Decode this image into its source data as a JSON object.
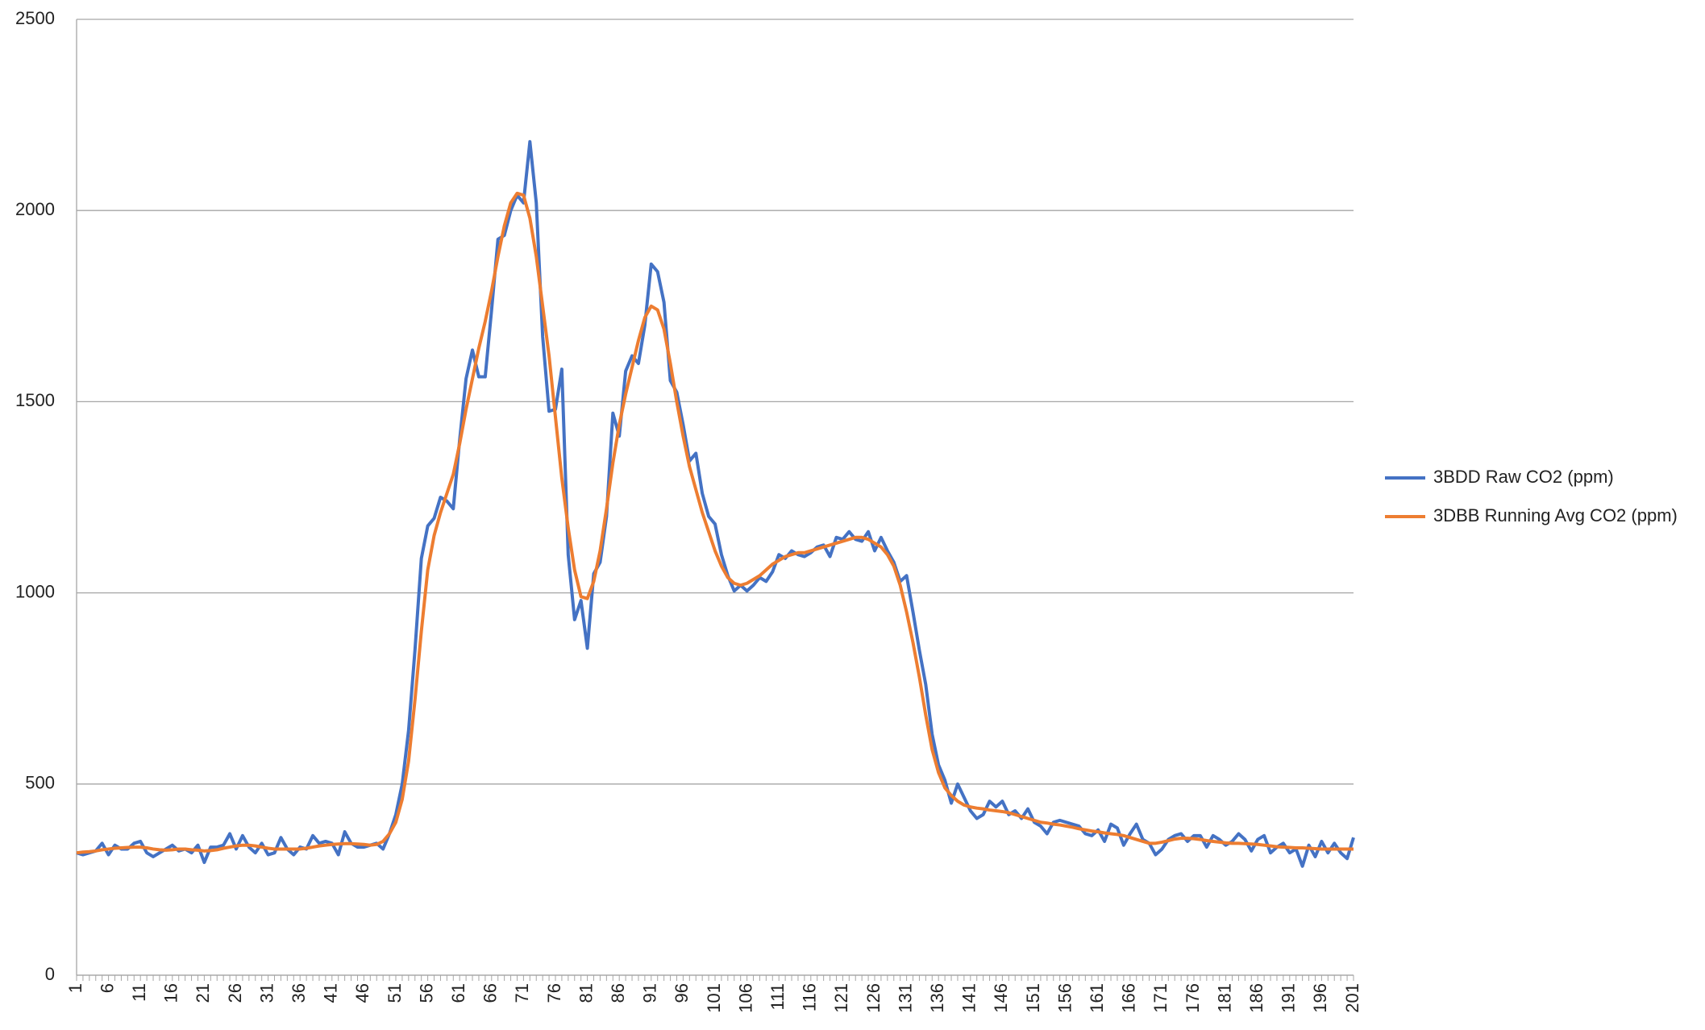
{
  "chart_data": {
    "type": "line",
    "categories": [
      1,
      null,
      null,
      null,
      null,
      6,
      null,
      null,
      null,
      null,
      11,
      null,
      null,
      null,
      null,
      16,
      null,
      null,
      null,
      null,
      21,
      null,
      null,
      null,
      null,
      26,
      null,
      null,
      null,
      null,
      31,
      null,
      null,
      null,
      null,
      36,
      null,
      null,
      null,
      null,
      41,
      null,
      null,
      null,
      null,
      46,
      null,
      null,
      null,
      null,
      51,
      null,
      null,
      null,
      null,
      56,
      null,
      null,
      null,
      null,
      61,
      null,
      null,
      null,
      null,
      66,
      null,
      null,
      null,
      null,
      71,
      null,
      null,
      null,
      null,
      76,
      null,
      null,
      null,
      null,
      81,
      null,
      null,
      null,
      null,
      86,
      null,
      null,
      null,
      null,
      91,
      null,
      null,
      null,
      null,
      96,
      null,
      null,
      null,
      null,
      101,
      null,
      null,
      null,
      null,
      106,
      null,
      null,
      null,
      null,
      111,
      null,
      null,
      null,
      null,
      116,
      null,
      null,
      null,
      null,
      121,
      null,
      null,
      null,
      null,
      126,
      null,
      null,
      null,
      null,
      131,
      null,
      null,
      null,
      null,
      136,
      null,
      null,
      null,
      null,
      141,
      null,
      null,
      null,
      null,
      146,
      null,
      null,
      null,
      null,
      151,
      null,
      null,
      null,
      null,
      156,
      null,
      null,
      null,
      null,
      161,
      null,
      null,
      null,
      null,
      166,
      null,
      null,
      null,
      null,
      171,
      null,
      null,
      null,
      null,
      176,
      null,
      null,
      null,
      null,
      181,
      null,
      null,
      null,
      null,
      186,
      null,
      null,
      null,
      null,
      191,
      null,
      null,
      null,
      null,
      196,
      null,
      null,
      null,
      null,
      201
    ],
    "series": [
      {
        "name": "3BDD Raw CO2 (ppm)",
        "color": "#4472c4",
        "values": [
          320,
          315,
          320,
          325,
          345,
          315,
          340,
          330,
          330,
          345,
          350,
          320,
          310,
          320,
          330,
          340,
          325,
          330,
          320,
          340,
          295,
          335,
          335,
          340,
          370,
          330,
          365,
          335,
          320,
          345,
          315,
          320,
          360,
          330,
          315,
          335,
          330,
          365,
          345,
          350,
          345,
          315,
          375,
          345,
          335,
          335,
          340,
          345,
          330,
          370,
          420,
          500,
          640,
          850,
          1090,
          1175,
          1195,
          1250,
          1240,
          1220,
          1400,
          1560,
          1635,
          1565,
          1565,
          1740,
          1925,
          1935,
          2000,
          2040,
          2020,
          2180,
          2020,
          1670,
          1475,
          1480,
          1585,
          1100,
          930,
          980,
          855,
          1050,
          1080,
          1200,
          1470,
          1410,
          1580,
          1620,
          1600,
          1700,
          1860,
          1840,
          1760,
          1555,
          1525,
          1440,
          1345,
          1365,
          1260,
          1200,
          1180,
          1100,
          1045,
          1005,
          1020,
          1005,
          1020,
          1040,
          1030,
          1055,
          1100,
          1090,
          1110,
          1100,
          1095,
          1105,
          1120,
          1125,
          1095,
          1145,
          1140,
          1160,
          1140,
          1135,
          1160,
          1110,
          1145,
          1110,
          1080,
          1030,
          1045,
          950,
          850,
          760,
          630,
          550,
          510,
          450,
          500,
          465,
          430,
          410,
          420,
          455,
          440,
          455,
          420,
          430,
          410,
          435,
          400,
          390,
          370,
          400,
          405,
          400,
          395,
          390,
          370,
          365,
          380,
          350,
          395,
          385,
          340,
          370,
          395,
          355,
          345,
          315,
          330,
          355,
          365,
          370,
          350,
          365,
          365,
          335,
          365,
          355,
          340,
          350,
          370,
          355,
          325,
          355,
          365,
          320,
          335,
          345,
          320,
          330,
          285,
          340,
          310,
          350,
          320,
          345,
          320,
          305,
          360
        ]
      },
      {
        "name": "3DBB Running Avg CO2 (ppm)",
        "color": "#ed7d31",
        "values": [
          320,
          322,
          323,
          325,
          328,
          330,
          332,
          333,
          334,
          335,
          335,
          333,
          330,
          328,
          327,
          328,
          330,
          330,
          328,
          327,
          325,
          326,
          328,
          332,
          335,
          338,
          340,
          340,
          338,
          335,
          332,
          330,
          330,
          330,
          330,
          330,
          332,
          335,
          338,
          340,
          342,
          343,
          344,
          344,
          343,
          342,
          340,
          342,
          350,
          370,
          400,
          460,
          560,
          720,
          900,
          1060,
          1150,
          1210,
          1260,
          1310,
          1390,
          1480,
          1560,
          1640,
          1710,
          1790,
          1880,
          1960,
          2020,
          2045,
          2040,
          1980,
          1880,
          1750,
          1620,
          1460,
          1300,
          1170,
          1060,
          990,
          985,
          1030,
          1110,
          1220,
          1340,
          1440,
          1520,
          1590,
          1660,
          1720,
          1750,
          1740,
          1690,
          1600,
          1500,
          1410,
          1330,
          1270,
          1210,
          1160,
          1110,
          1070,
          1040,
          1025,
          1020,
          1025,
          1035,
          1045,
          1060,
          1075,
          1085,
          1095,
          1100,
          1105,
          1105,
          1110,
          1115,
          1120,
          1125,
          1130,
          1135,
          1140,
          1145,
          1145,
          1140,
          1130,
          1120,
          1100,
          1070,
          1020,
          950,
          870,
          780,
          680,
          590,
          530,
          490,
          470,
          455,
          445,
          440,
          437,
          435,
          432,
          430,
          428,
          425,
          420,
          415,
          410,
          405,
          400,
          398,
          395,
          393,
          390,
          387,
          383,
          380,
          377,
          375,
          372,
          370,
          368,
          365,
          360,
          355,
          350,
          345,
          345,
          348,
          352,
          356,
          358,
          358,
          357,
          355,
          352,
          350,
          348,
          346,
          345,
          345,
          344,
          343,
          342,
          340,
          338,
          336,
          335,
          334,
          333,
          333,
          332,
          331,
          330,
          330,
          330,
          330,
          330,
          330
        ]
      }
    ],
    "ylim": [
      0,
      2500
    ],
    "yticks": [
      0,
      500,
      1000,
      1500,
      2000,
      2500
    ],
    "grid": true,
    "legend": "right"
  }
}
